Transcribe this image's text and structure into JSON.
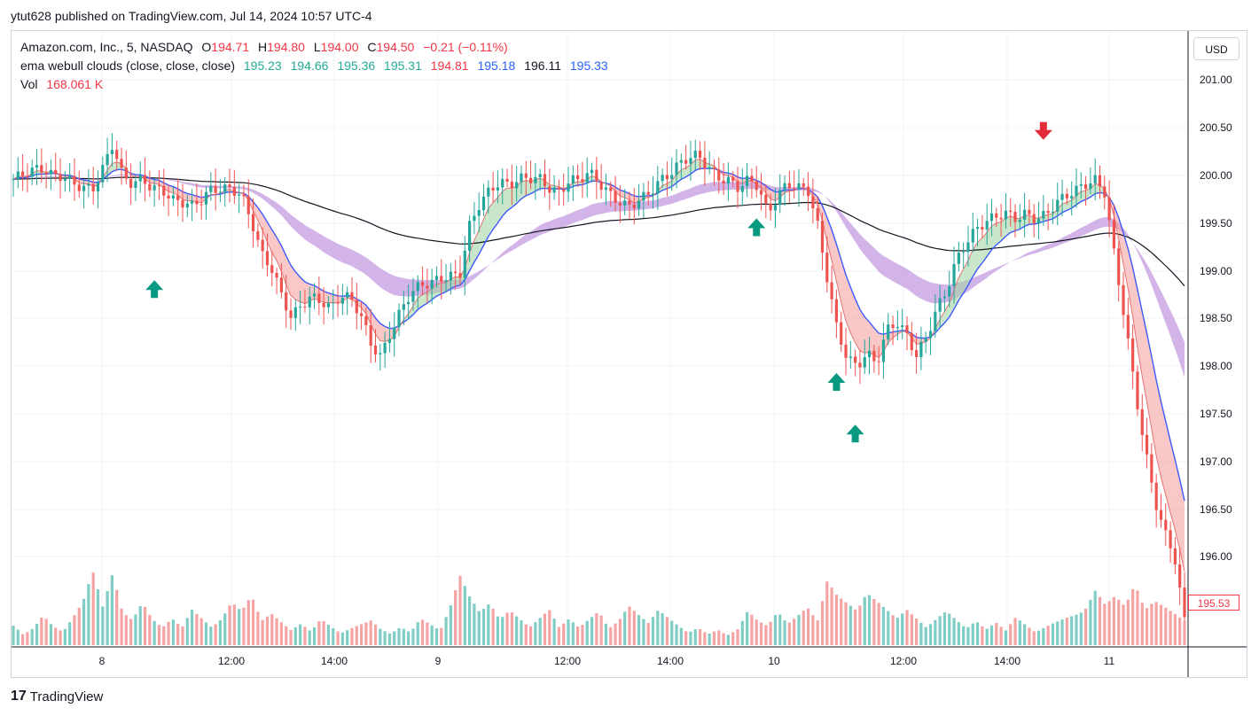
{
  "header": {
    "published_by": "ytut628 published on TradingView.com, Jul 14, 2024 10:57 UTC-4"
  },
  "legend": {
    "symbol": "Amazon.com, Inc., 5, NASDAQ",
    "ohlc": {
      "o_label": "O",
      "o": "194.71",
      "h_label": "H",
      "h": "194.80",
      "l_label": "L",
      "l": "194.00",
      "c_label": "C",
      "c": "194.50",
      "chg": "−0.21 (−0.11%)"
    },
    "indicator_name": "ema webull clouds (close, close, close)",
    "indicator_values": [
      "195.23",
      "194.66",
      "195.36",
      "195.31",
      "194.81",
      "195.18",
      "196.11",
      "195.33"
    ],
    "vol_label": "Vol",
    "vol_value": "168.061 K"
  },
  "currency": "USD",
  "last_price": "195.53",
  "footer": {
    "brand": "TradingView",
    "logo_glyph": "17"
  },
  "colors": {
    "up": "#26a69a",
    "down": "#ef5350",
    "purple_cloud": "#c49be0",
    "blue_ema": "#3d5afe",
    "black_ema": "#131722",
    "green_text": "#22ab94",
    "red_text": "#f23645",
    "blue_text": "#2962ff"
  },
  "chart_data": {
    "type": "candlestick",
    "ylim": [
      195.5,
      201.3
    ],
    "y_ticks": [
      "201.00",
      "200.50",
      "200.00",
      "199.50",
      "199.00",
      "198.50",
      "198.00",
      "197.50",
      "197.00",
      "196.50",
      "196.00"
    ],
    "x_ticks": [
      "8",
      "12:00",
      "14:00",
      "9",
      "12:00",
      "14:00",
      "10",
      "12:00",
      "14:00",
      "11"
    ],
    "close_path": [
      199.95,
      199.97,
      200.0,
      200.02,
      199.98,
      200.01,
      199.95,
      199.9,
      199.85,
      200.02,
      200.25,
      199.95,
      199.9,
      199.98,
      199.9,
      199.88,
      199.75,
      199.7,
      199.65,
      199.72,
      199.85,
      199.88,
      199.9,
      199.82,
      199.55,
      199.2,
      199.05,
      198.8,
      198.6,
      198.75,
      198.85,
      198.8,
      198.7,
      198.8,
      198.75,
      198.6,
      198.35,
      198.25,
      198.5,
      198.7,
      198.85,
      198.9,
      198.9,
      198.95,
      199.0,
      199.05,
      199.55,
      199.75,
      199.85,
      199.9,
      199.85,
      199.92,
      199.95,
      199.98,
      199.9,
      199.85,
      199.95,
      199.92,
      199.98,
      199.88,
      199.8,
      199.75,
      199.72,
      199.78,
      199.82,
      199.9,
      199.95,
      200.05,
      200.15,
      200.2,
      200.1,
      200.0,
      199.95,
      199.85,
      199.9,
      199.85,
      199.6,
      199.8,
      199.95,
      199.9,
      199.88,
      199.5,
      198.95,
      198.45,
      198.2,
      198.15,
      198.3,
      198.2,
      198.5,
      198.55,
      198.4,
      198.2,
      198.4,
      198.7,
      198.9,
      199.2,
      199.35,
      199.45,
      199.5,
      199.55,
      199.6,
      199.58,
      199.65,
      199.6,
      199.62,
      199.7,
      199.75,
      199.8,
      199.88,
      199.95,
      199.85,
      199.2,
      198.6,
      197.9,
      197.3,
      196.8,
      196.5,
      196.3,
      195.7
    ],
    "vol_path": [
      0.4,
      0.2,
      0.3,
      0.5,
      0.3,
      0.2,
      0.4,
      0.6,
      1.0,
      0.5,
      0.9,
      0.4,
      0.3,
      0.5,
      0.3,
      0.2,
      0.3,
      0.2,
      0.4,
      0.3,
      0.2,
      0.3,
      0.5,
      0.4,
      0.6,
      0.3,
      0.4,
      0.3,
      0.2,
      0.3,
      0.2,
      0.4,
      0.3,
      0.2,
      0.3,
      0.4,
      0.5,
      0.3,
      0.2,
      0.3,
      0.2,
      0.4,
      0.3,
      0.2,
      0.5,
      0.9,
      0.6,
      0.4,
      0.5,
      0.3,
      0.4,
      0.3,
      0.2,
      0.3,
      0.4,
      0.2,
      0.3,
      0.2,
      0.3,
      0.4,
      0.2,
      0.3,
      0.5,
      0.4,
      0.3,
      0.5,
      0.4,
      0.3,
      0.2,
      0.3,
      0.2,
      0.3,
      0.2,
      0.3,
      0.6,
      0.4,
      0.3,
      0.5,
      0.3,
      0.4,
      0.5,
      0.3,
      0.8,
      0.6,
      0.5,
      0.4,
      0.6,
      0.5,
      0.4,
      0.3,
      0.4,
      0.3,
      0.2,
      0.3,
      0.4,
      0.3,
      0.2,
      0.3,
      0.2,
      0.3,
      0.2,
      0.4,
      0.3,
      0.2,
      0.3,
      0.4,
      0.5,
      0.6,
      0.7,
      1.0,
      0.7,
      0.8,
      0.6,
      0.9,
      0.5,
      0.6,
      0.5,
      0.4,
      0.3
    ],
    "markers": [
      {
        "type": "up",
        "x_index": 14,
        "price": 198.9
      },
      {
        "type": "up",
        "x_index": 75,
        "price": 199.5
      },
      {
        "type": "up",
        "x_index": 83,
        "price": 198.0
      },
      {
        "type": "up",
        "x_index": 85,
        "price": 197.5
      },
      {
        "type": "down",
        "x_index": 104,
        "price": 200.4
      }
    ]
  }
}
